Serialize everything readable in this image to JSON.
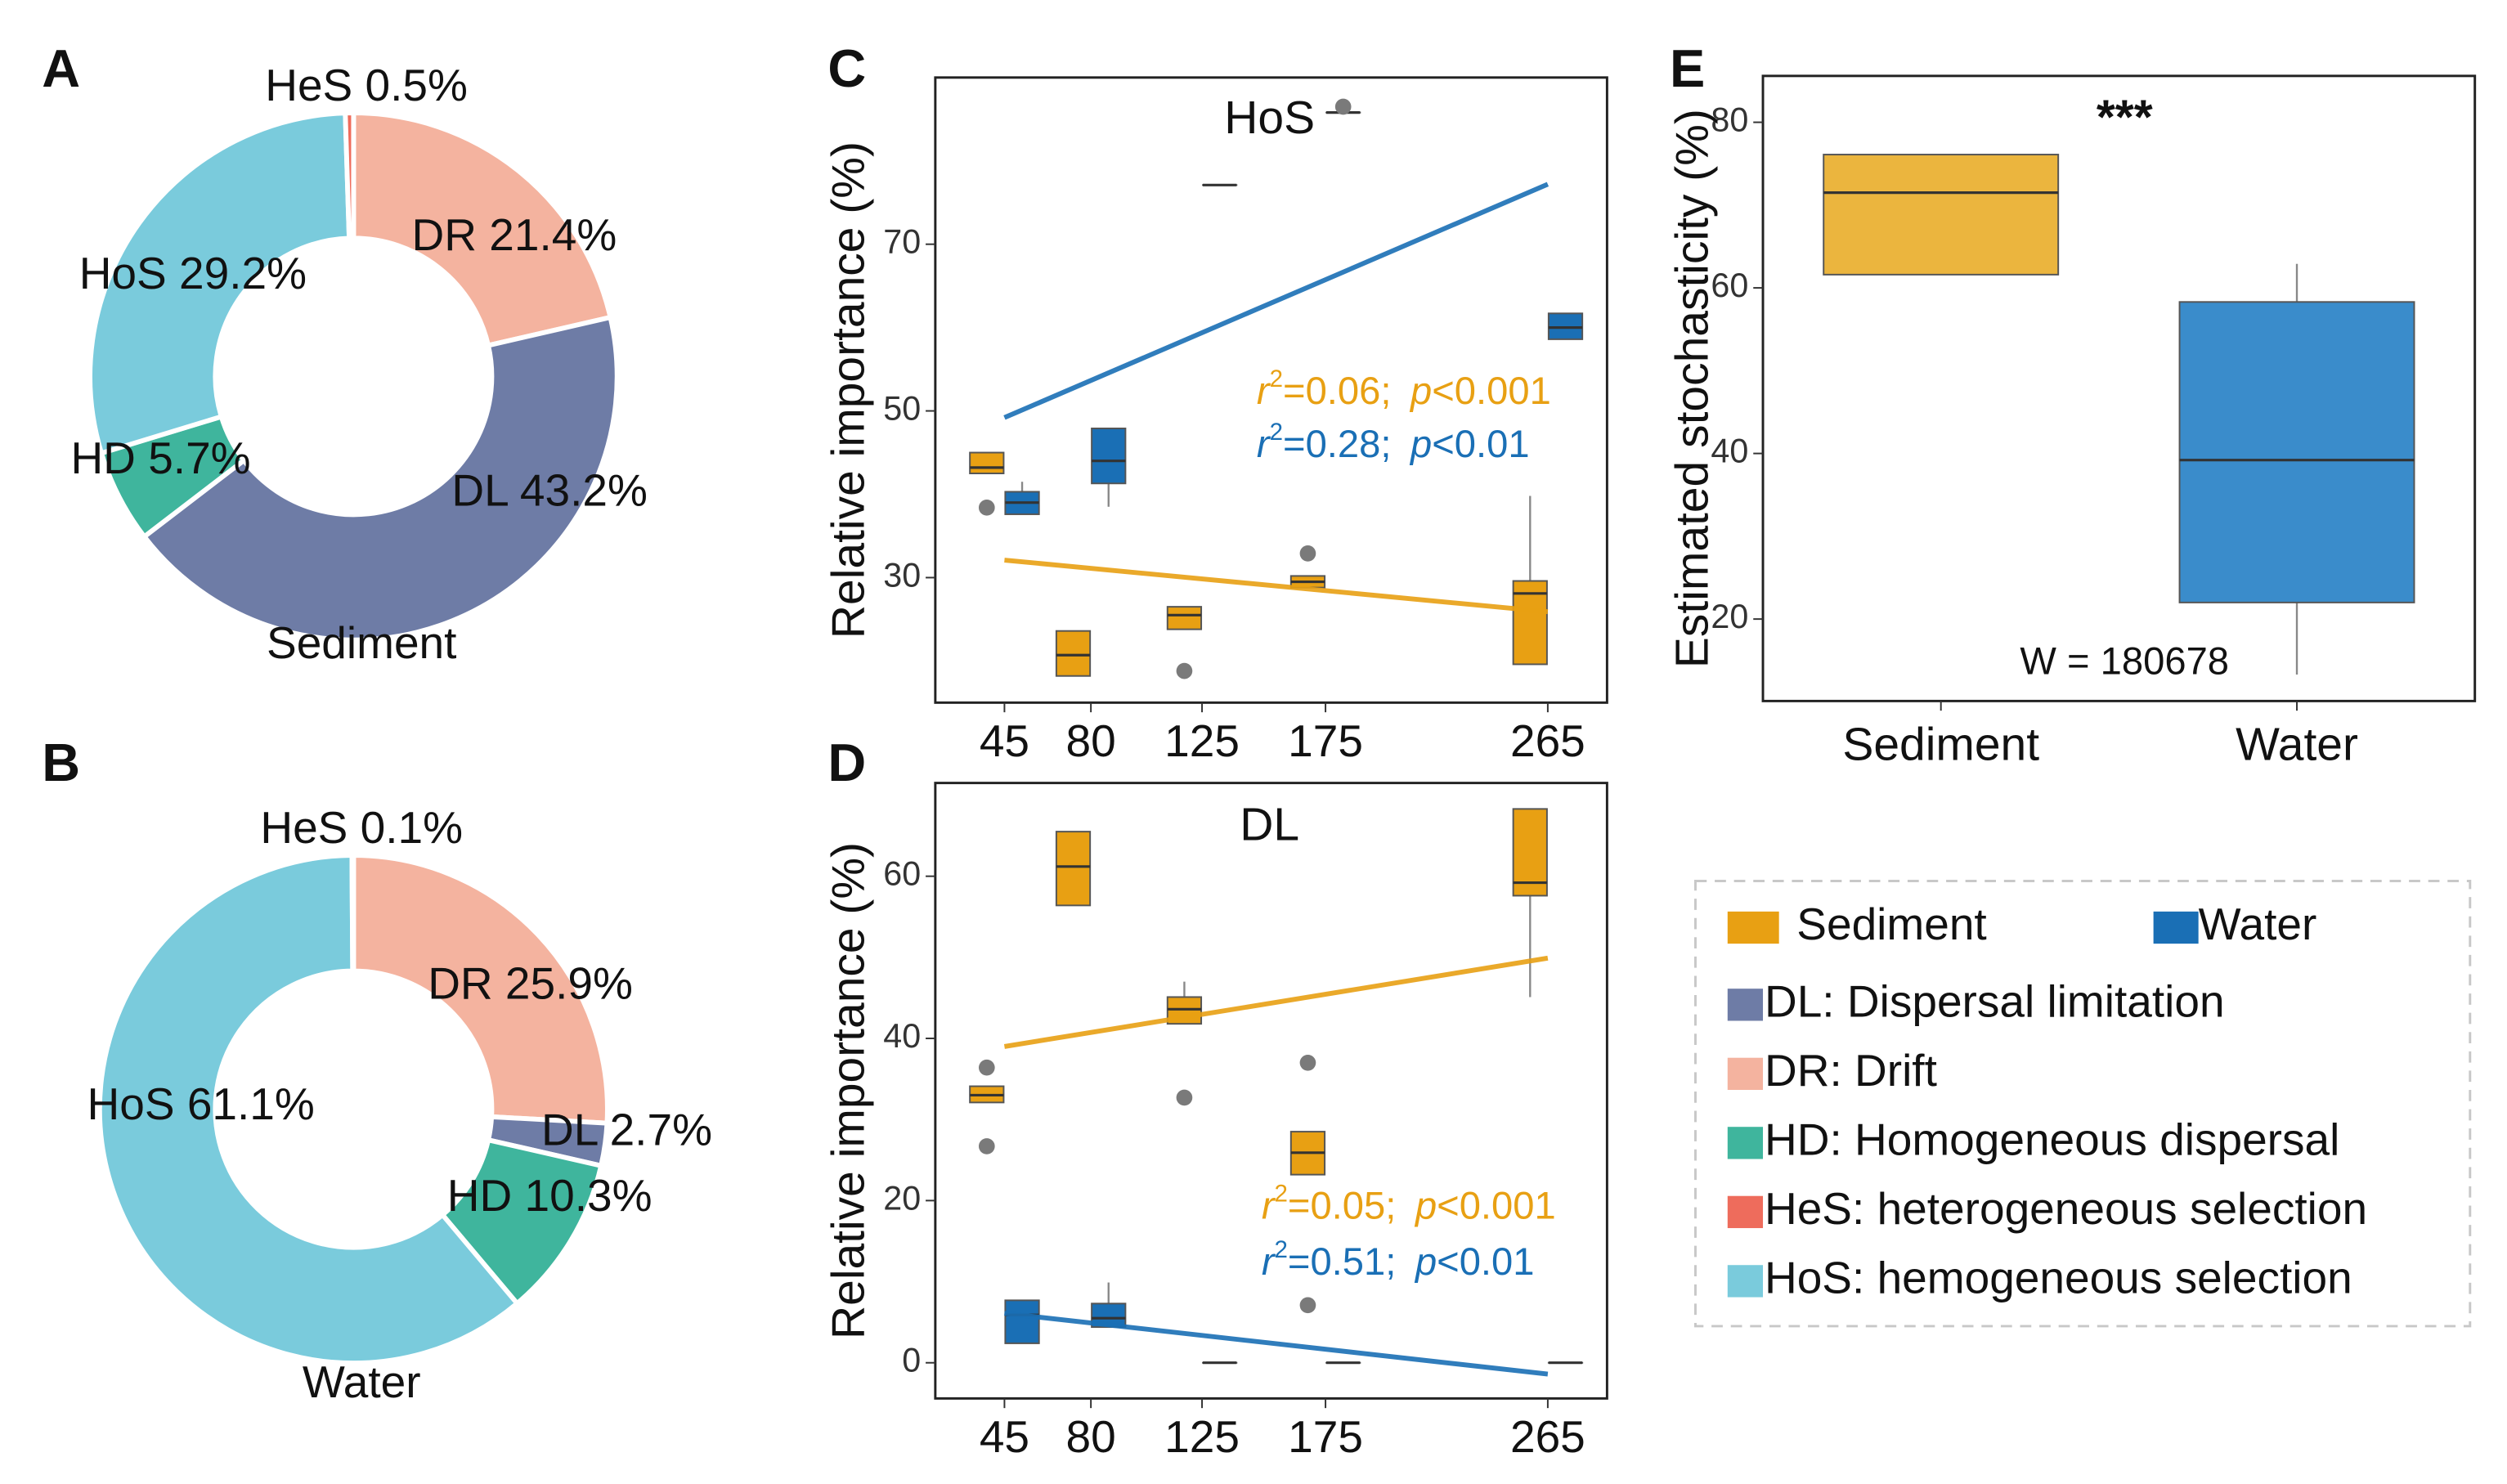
{
  "chart_data": [
    {
      "type": "donut",
      "panel": "A",
      "caption": "Sediment",
      "values": [
        21.4,
        43.2,
        5.7,
        29.2,
        0.5
      ],
      "value_labels": [
        "DR 21.4%",
        "DL 43.2%",
        "HD 5.7%",
        "HoS 29.2%",
        "HeS 0.5%"
      ],
      "colors": [
        "#f4b39f",
        "#6e7ca6",
        "#3fb59d",
        "#7acbdc",
        "#ee6c5c"
      ]
    },
    {
      "type": "donut",
      "panel": "B",
      "caption": "Water",
      "values": [
        25.9,
        2.7,
        10.3,
        61.1,
        0.1
      ],
      "value_labels": [
        "DR 25.9%",
        "DL 2.7%",
        "HD 10.3%",
        "HoS 61.1%",
        "HeS 0.1%"
      ],
      "colors": [
        "#f4b39f",
        "#6e7ca6",
        "#3fb59d",
        "#7acbdc",
        "#ee6c5c"
      ]
    },
    {
      "type": "box",
      "panel": "C",
      "title": "HoS",
      "ylabel": "Relative importance (%)",
      "xlim": [
        17,
        289
      ],
      "xticks": [
        45,
        80,
        125,
        175,
        265
      ],
      "ylim": [
        15,
        90
      ],
      "yticks": [
        30,
        50,
        70
      ],
      "series": [
        {
          "color": "#e8a013",
          "stat": [
            "r",
            "2",
            "=0.06;",
            "p",
            "<0.001"
          ],
          "fit": {
            "x": [
              45,
              265
            ],
            "values": [
              32.1,
              25.9
            ]
          },
          "boxes": [
            {
              "x": 45,
              "whislo": 42.5,
              "q1": 42.5,
              "med": 43.2,
              "q3": 45,
              "whishi": 45,
              "fliers": [
                38.4
              ]
            },
            {
              "x": 80,
              "whislo": 18.2,
              "q1": 18.2,
              "med": 20.7,
              "q3": 23.6,
              "whishi": 23.6
            },
            {
              "x": 125,
              "whislo": 23.8,
              "q1": 23.8,
              "med": 25.5,
              "q3": 26.5,
              "whishi": 26.5,
              "fliers": [
                18.8
              ]
            },
            {
              "x": 175,
              "whislo": 28.8,
              "q1": 28.8,
              "med": 29.5,
              "q3": 30.2,
              "whishi": 30.2,
              "fliers": [
                32.9
              ]
            },
            {
              "x": 265,
              "whislo": 19.6,
              "q1": 19.6,
              "med": 28.1,
              "q3": 29.6,
              "whishi": 39.8
            }
          ]
        },
        {
          "color": "#1a6fb5",
          "stat": [
            "r",
            "2",
            "=0.28;",
            "p",
            "<0.01"
          ],
          "fit": {
            "x": [
              45,
              265
            ],
            "values": [
              49.2,
              77.2
            ]
          },
          "boxes": [
            {
              "x": 45,
              "whislo": 37.6,
              "q1": 37.6,
              "med": 39,
              "q3": 40.3,
              "whishi": 41.5
            },
            {
              "x": 80,
              "whislo": 38.5,
              "q1": 41.3,
              "med": 44,
              "q3": 47.9,
              "whishi": 47.9
            },
            {
              "x": 125,
              "whislo": 77.1,
              "q1": 77.1,
              "med": 77.1,
              "q3": 77.1,
              "whishi": 77.1
            },
            {
              "x": 175,
              "whislo": 85.8,
              "q1": 85.8,
              "med": 85.8,
              "q3": 85.8,
              "whishi": 85.8,
              "fliers": [
                86.5
              ]
            },
            {
              "x": 265,
              "whislo": 58.6,
              "q1": 58.6,
              "med": 60,
              "q3": 61.7,
              "whishi": 61.7
            }
          ]
        }
      ]
    },
    {
      "type": "box",
      "panel": "D",
      "title": "DL",
      "ylabel": "Relative importance (%)",
      "xlim": [
        17,
        289
      ],
      "xticks": [
        45,
        80,
        125,
        175,
        265
      ],
      "ylim": [
        -4.4,
        71.5
      ],
      "yticks": [
        0,
        20,
        40,
        60
      ],
      "series": [
        {
          "color": "#e8a013",
          "stat": [
            "r",
            "2",
            "=0.05;",
            "p",
            "<0.001"
          ],
          "fit": {
            "x": [
              45,
              265
            ],
            "values": [
              39,
              49.9
            ]
          },
          "boxes": [
            {
              "x": 45,
              "whislo": 32.1,
              "q1": 32.1,
              "med": 33,
              "q3": 34.1,
              "whishi": 34.1,
              "fliers": [
                36.4,
                26.7
              ]
            },
            {
              "x": 80,
              "whislo": 56.4,
              "q1": 56.4,
              "med": 61.2,
              "q3": 65.5,
              "whishi": 65.5
            },
            {
              "x": 125,
              "whislo": 41.8,
              "q1": 41.8,
              "med": 43.6,
              "q3": 45.1,
              "whishi": 47,
              "fliers": [
                32.7
              ]
            },
            {
              "x": 175,
              "whislo": 23.2,
              "q1": 23.2,
              "med": 25.9,
              "q3": 28.5,
              "whishi": 28.5,
              "fliers": [
                37,
                7.1
              ]
            },
            {
              "x": 265,
              "whislo": 45.1,
              "q1": 57.6,
              "med": 59.2,
              "q3": 68.3,
              "whishi": 68.3
            }
          ]
        },
        {
          "color": "#1a6fb5",
          "stat": [
            "r",
            "2",
            "=0.51;",
            "p",
            "<0.01"
          ],
          "fit": {
            "x": [
              45,
              265
            ],
            "values": [
              6.1,
              -1.4
            ]
          },
          "boxes": [
            {
              "x": 45,
              "whislo": 2.4,
              "q1": 2.4,
              "med": 5.9,
              "q3": 7.7,
              "whishi": 7.7
            },
            {
              "x": 80,
              "whislo": 4.4,
              "q1": 4.4,
              "med": 5.5,
              "q3": 7.3,
              "whishi": 9.9
            },
            {
              "x": 125,
              "whislo": 0,
              "q1": 0,
              "med": 0,
              "q3": 0,
              "whishi": 0
            },
            {
              "x": 175,
              "whislo": 0,
              "q1": 0,
              "med": 0,
              "q3": 0,
              "whishi": 0
            },
            {
              "x": 265,
              "whislo": 0,
              "q1": 0,
              "med": 0,
              "q3": 0,
              "whishi": 0
            }
          ]
        }
      ]
    },
    {
      "type": "box",
      "panel": "E",
      "ylabel": "Estimated stochasticity (%)",
      "categories": [
        "Sediment",
        "Water"
      ],
      "ylim": [
        10.1,
        85.6
      ],
      "yticks": [
        20,
        40,
        60,
        80
      ],
      "annotations": [
        "***",
        "W = 180678"
      ],
      "series": [
        {
          "color": "#ebb53e",
          "boxes": [
            {
              "whislo": 61.6,
              "q1": 61.6,
              "med": 71.5,
              "q3": 76.1,
              "whishi": 76.1
            }
          ]
        },
        {
          "color": "#3a8ccb",
          "boxes": [
            {
              "whislo": 13.3,
              "q1": 22,
              "med": 39.2,
              "q3": 58.3,
              "whishi": 62.9
            }
          ]
        }
      ]
    }
  ],
  "legend": {
    "items": [
      {
        "label": "Sediment",
        "color": "#e8a013"
      },
      {
        "label": "Water",
        "color": "#1a6fb5"
      },
      {
        "label": "DL: Dispersal limitation",
        "color": "#6e7ca6"
      },
      {
        "label": "DR: Drift",
        "color": "#f4b39f"
      },
      {
        "label": "HD: Homogeneous dispersal",
        "color": "#3fb59d"
      },
      {
        "label": "HeS: heterogeneous selection",
        "color": "#ee6c5c"
      },
      {
        "label": "HoS: hemogeneous selection",
        "color": "#7acbdc"
      }
    ]
  }
}
